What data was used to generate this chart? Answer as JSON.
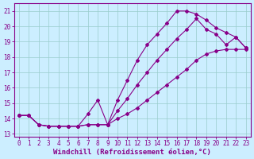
{
  "line1_x": [
    0,
    1,
    2,
    3,
    4,
    5,
    6,
    7,
    8,
    9,
    10,
    11,
    12,
    13,
    14,
    15,
    16,
    17,
    18,
    19,
    20,
    21,
    22,
    23
  ],
  "line1_y": [
    14.2,
    14.2,
    13.6,
    13.5,
    13.5,
    13.5,
    13.5,
    13.6,
    13.6,
    13.6,
    14.0,
    14.3,
    14.7,
    15.2,
    15.7,
    16.2,
    16.7,
    17.2,
    17.8,
    18.2,
    18.4,
    18.5,
    18.5,
    18.5
  ],
  "line2_x": [
    0,
    1,
    2,
    3,
    4,
    5,
    6,
    7,
    8,
    9,
    10,
    11,
    12,
    13,
    14,
    15,
    16,
    17,
    18,
    19,
    20,
    21,
    22,
    23
  ],
  "line2_y": [
    14.2,
    14.2,
    13.6,
    13.5,
    13.5,
    13.5,
    13.5,
    14.3,
    15.2,
    13.6,
    15.2,
    16.5,
    17.8,
    18.8,
    19.5,
    20.2,
    21.0,
    21.0,
    20.8,
    20.4,
    19.9,
    19.6,
    19.3,
    18.6
  ],
  "line3_x": [
    0,
    1,
    2,
    3,
    4,
    5,
    6,
    7,
    8,
    9,
    10,
    11,
    12,
    13,
    14,
    15,
    16,
    17,
    18,
    19,
    20,
    21,
    22,
    23
  ],
  "line3_y": [
    14.2,
    14.2,
    13.6,
    13.5,
    13.5,
    13.5,
    13.5,
    13.6,
    13.6,
    13.6,
    14.5,
    15.3,
    16.2,
    17.0,
    17.8,
    18.5,
    19.2,
    19.8,
    20.5,
    19.8,
    19.5,
    18.8,
    19.3,
    18.6
  ],
  "line_color": "#880088",
  "bg_color": "#cceeff",
  "grid_color": "#99cccc",
  "xlabel": "Windchill (Refroidissement éolien,°C)",
  "xlim": [
    -0.5,
    23.5
  ],
  "ylim": [
    12.8,
    21.5
  ],
  "yticks": [
    13,
    14,
    15,
    16,
    17,
    18,
    19,
    20,
    21
  ],
  "xticks": [
    0,
    1,
    2,
    3,
    4,
    5,
    6,
    7,
    8,
    9,
    10,
    11,
    12,
    13,
    14,
    15,
    16,
    17,
    18,
    19,
    20,
    21,
    22,
    23
  ],
  "tick_fontsize": 5.5,
  "xlabel_fontsize": 6.5
}
